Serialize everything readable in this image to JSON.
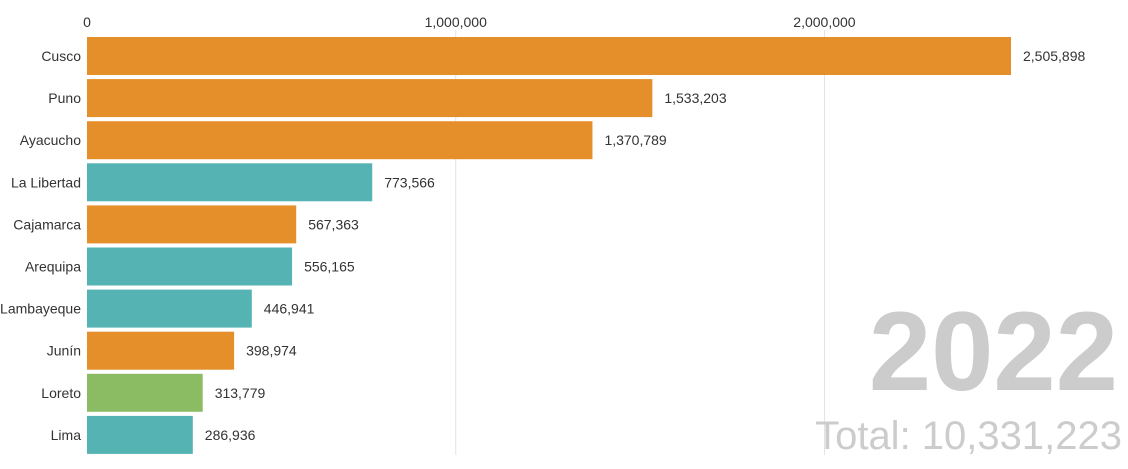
{
  "chart_data": {
    "type": "bar",
    "orientation": "horizontal",
    "categories": [
      "Cusco",
      "Puno",
      "Ayacucho",
      "La Libertad",
      "Cajamarca",
      "Arequipa",
      "Lambayeque",
      "Junín",
      "Loreto",
      "Lima"
    ],
    "values": [
      2505898,
      1533203,
      1370789,
      773566,
      567363,
      556165,
      446941,
      398974,
      313779,
      286936
    ],
    "value_labels": [
      "2,505,898",
      "1,533,203",
      "1,370,789",
      "773,566",
      "567,363",
      "556,165",
      "446,941",
      "398,974",
      "313,779",
      "286,936"
    ],
    "bar_colors": [
      "#e58f2b",
      "#e58f2b",
      "#e58f2b",
      "#56b3b3",
      "#e58f2b",
      "#56b3b3",
      "#56b3b3",
      "#e58f2b",
      "#8bbb62",
      "#56b3b3"
    ],
    "x_ticks": [
      0,
      1000000,
      2000000
    ],
    "x_tick_labels": [
      "0",
      "1,000,000",
      "2,000,000"
    ],
    "xlim": [
      0,
      2505898
    ],
    "grid": true,
    "year": "2022",
    "total_label": "Total: 10,331,223"
  }
}
